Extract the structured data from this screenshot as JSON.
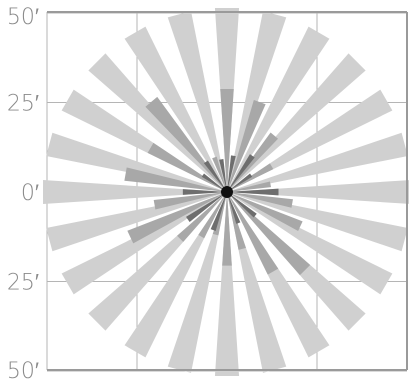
{
  "chart_data": {
    "type": "radial-bar",
    "title": "",
    "unit": "′",
    "y_tick_labels": [
      "50′",
      "25′",
      "0′",
      "25′",
      "50′"
    ],
    "y_ticks": [
      50,
      25,
      0,
      -25,
      -50
    ],
    "x_ticks": [
      -50,
      -25,
      0,
      25,
      50
    ],
    "range": 50,
    "grid": true,
    "colors": {
      "outer_rays": "#d0d0d0",
      "mid_rays": "#a8a8a8",
      "inner_rays": "#6e6e6e",
      "center_dot": "#111111",
      "grid": "#b5b5b5",
      "frame": "#9a9a9a",
      "text": "#8a8a8a"
    },
    "ray_count": 24,
    "ray_angle_step_deg": 15,
    "ray_width_deg": 7.5,
    "series": [
      {
        "name": "",
        "color": "#d0d0d0",
        "angles_deg": [
          0,
          15,
          30,
          45,
          60,
          75,
          90,
          105,
          120,
          135,
          150,
          165,
          180,
          195,
          210,
          225,
          240,
          255,
          270,
          285,
          300,
          315,
          330,
          345
        ],
        "lengths": [
          50,
          50,
          50,
          50,
          50,
          50,
          50,
          50,
          50,
          50,
          50,
          50,
          50,
          50,
          50,
          50,
          50,
          50,
          50,
          50,
          50,
          50,
          50,
          50
        ]
      },
      {
        "name": "",
        "color": "#a8a8a8",
        "angles_deg": [
          0,
          20,
          40,
          60,
          80,
          100,
          115,
          135,
          150,
          165,
          180,
          195,
          210,
          225,
          245,
          260,
          280,
          300,
          320,
          340
        ],
        "lengths": [
          28,
          26,
          20,
          14,
          12,
          18,
          22,
          30,
          25,
          16,
          20,
          12,
          14,
          18,
          29,
          20,
          28,
          24,
          32,
          10
        ]
      },
      {
        "name": "",
        "color": "#6e6e6e",
        "angles_deg": [
          10,
          35,
          55,
          90,
          130,
          160,
          200,
          235,
          270,
          305,
          325,
          350
        ],
        "lengths": [
          10,
          12,
          8,
          14,
          10,
          9,
          11,
          13,
          12,
          8,
          10,
          9
        ]
      }
    ]
  }
}
